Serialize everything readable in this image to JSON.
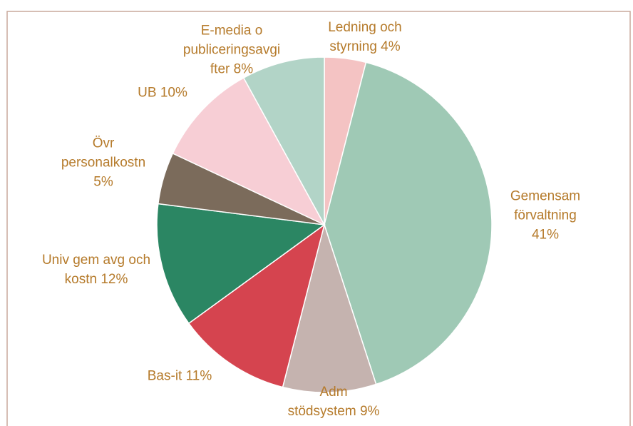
{
  "chart_data": {
    "type": "pie",
    "categories": [
      "Ledning och styrning",
      "Gemensam förvaltning",
      "Adm stödsystem",
      "Bas-it",
      "Univ gem avg och kostn",
      "Övr personalkostn",
      "UB",
      "E-media o publiceringsavgifter"
    ],
    "values": [
      4,
      41,
      9,
      11,
      12,
      5,
      10,
      8
    ],
    "value_labels": [
      "4%",
      "41%",
      "9%",
      "11%",
      "12%",
      "5%",
      "10%",
      "8%"
    ],
    "colors": [
      "#f4c3c3",
      "#9fc9b5",
      "#c5b3af",
      "#d5444f",
      "#2b8663",
      "#7b6b5b",
      "#f7ced5",
      "#b2d4c7"
    ]
  }
}
